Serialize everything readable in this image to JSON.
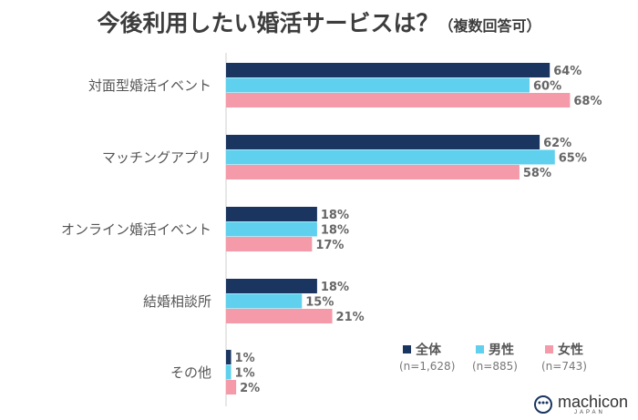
{
  "title": "今後利用したい婚活サービスは？",
  "subtitle": "（複数回答可）",
  "chart_data": {
    "type": "bar",
    "orientation": "horizontal",
    "title": "今後利用したい婚活サービスは？（複数回答可）",
    "categories": [
      "対面型婚活イベント",
      "マッチングアプリ",
      "オンライン婚活イベント",
      "結婚相談所",
      "その他"
    ],
    "series": [
      {
        "name": "全体",
        "n": "(n=1,628)",
        "color": "#1a3560",
        "values": [
          64,
          62,
          18,
          18,
          1
        ],
        "labels": [
          "64%",
          "62%",
          "18%",
          "18%",
          "1%"
        ]
      },
      {
        "name": "男性",
        "n": "(n=885)",
        "color": "#5fd0ed",
        "values": [
          60,
          65,
          18,
          15,
          1
        ],
        "labels": [
          "60%",
          "65%",
          "18%",
          "15%",
          "1%"
        ]
      },
      {
        "name": "女性",
        "n": "(n=743)",
        "color": "#f59aa8",
        "values": [
          68,
          58,
          17,
          21,
          2
        ],
        "labels": [
          "68%",
          "58%",
          "17%",
          "21%",
          "2%"
        ]
      }
    ],
    "xlim": [
      0,
      100
    ],
    "grid": false,
    "legend": "bottom-right"
  },
  "logo": {
    "text": "machicon",
    "sub": "JAPAN",
    "icon": "machicon-logo-icon"
  }
}
